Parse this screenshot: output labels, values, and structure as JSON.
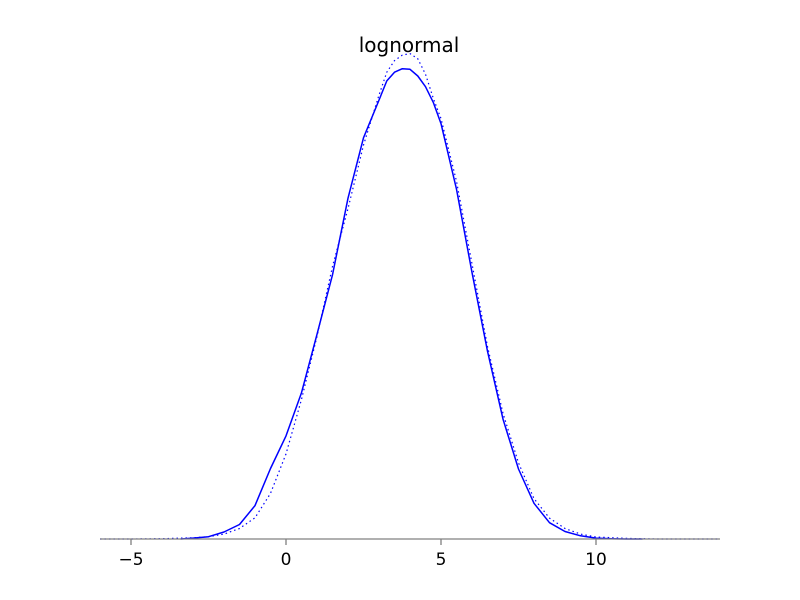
{
  "chart_data": {
    "type": "line",
    "title": "lognormal",
    "xlabel": "",
    "ylabel": "",
    "xlim": [
      -6,
      14
    ],
    "ylim": [
      0,
      0.165
    ],
    "x_ticks": [
      -5,
      0,
      5,
      10
    ],
    "x_tick_labels": [
      "−5",
      "0",
      "5",
      "10"
    ],
    "grid": false,
    "legend": "none",
    "series": [
      {
        "style": "solid",
        "color": "#0000ff",
        "x": [
          -3.4,
          -3.0,
          -2.5,
          -2.0,
          -1.5,
          -1.0,
          -0.5,
          0.0,
          0.5,
          1.0,
          1.5,
          2.0,
          2.5,
          3.0,
          3.25,
          3.5,
          3.75,
          4.0,
          4.25,
          4.5,
          4.75,
          5.0,
          5.5,
          6.0,
          6.5,
          7.0,
          7.5,
          8.0,
          8.5,
          9.0,
          9.5,
          10.0,
          10.5,
          11.0,
          11.5
        ],
        "values": [
          0.0,
          0.0003,
          0.0008,
          0.0024,
          0.005,
          0.0115,
          0.0243,
          0.0355,
          0.0504,
          0.0705,
          0.091,
          0.1174,
          0.1382,
          0.1512,
          0.1578,
          0.1608,
          0.162,
          0.1618,
          0.1595,
          0.1558,
          0.1504,
          0.1431,
          0.1205,
          0.0918,
          0.0647,
          0.0413,
          0.0241,
          0.0123,
          0.0056,
          0.0026,
          0.0011,
          0.0003,
          0.0001,
          0.0,
          0.0
        ]
      },
      {
        "style": "dotted",
        "color": "#0000ff",
        "x": [
          -6.0,
          -5.0,
          -4.0,
          -3.0,
          -2.5,
          -2.0,
          -1.5,
          -1.0,
          -0.5,
          0.0,
          0.5,
          1.0,
          1.5,
          2.0,
          2.5,
          3.0,
          3.25,
          3.5,
          3.75,
          4.0,
          4.25,
          4.5,
          4.75,
          5.0,
          5.5,
          6.0,
          6.5,
          7.0,
          7.5,
          8.0,
          8.5,
          9.0,
          9.5,
          10.0,
          11.0,
          12.0,
          13.0,
          14.0
        ],
        "values": [
          0.0,
          0.0,
          0.0001,
          0.0004,
          0.0008,
          0.0017,
          0.0036,
          0.0073,
          0.0157,
          0.0293,
          0.0481,
          0.0698,
          0.0939,
          0.1138,
          0.1357,
          0.1529,
          0.1608,
          0.1648,
          0.1667,
          0.1672,
          0.1654,
          0.1601,
          0.1518,
          0.1448,
          0.1232,
          0.0948,
          0.0663,
          0.0433,
          0.0262,
          0.0139,
          0.0072,
          0.0036,
          0.0017,
          0.0007,
          0.0002,
          0.0,
          0.0,
          0.0
        ]
      }
    ]
  }
}
